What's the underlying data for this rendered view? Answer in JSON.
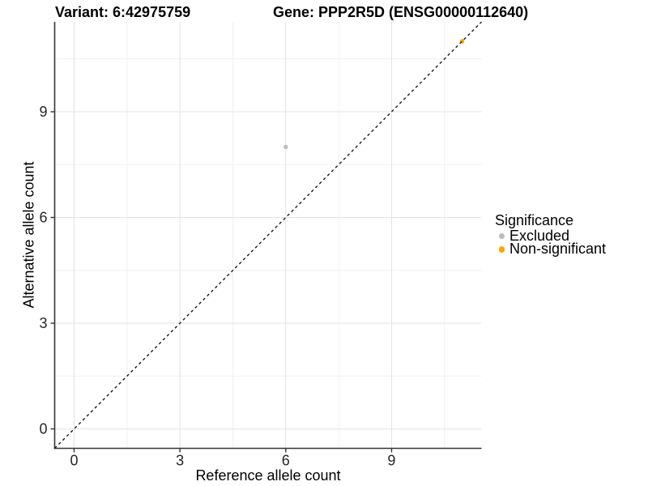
{
  "chart_data": {
    "type": "scatter",
    "title_left": "Variant: 6:42975759",
    "title_right": "Gene: PPP2R5D (ENSG00000112640)",
    "xlabel": "Reference allele count",
    "ylabel": "Alternative allele count",
    "xlim": [
      -0.55,
      11.55
    ],
    "ylim": [
      -0.55,
      11.55
    ],
    "x_major_ticks": [
      0,
      3,
      6,
      9
    ],
    "y_major_ticks": [
      0,
      3,
      6,
      9
    ],
    "x_minor_gridlines": [
      1.5,
      4.5,
      7.5,
      10.5
    ],
    "y_minor_gridlines": [
      1.5,
      4.5,
      7.5,
      10.5
    ],
    "grid": "major-and-minor",
    "identity_line": {
      "type": "y=x",
      "style": "dashed",
      "color": "#1a1a1a"
    },
    "series": [
      {
        "name": "Excluded",
        "color": "#bcbcbc",
        "points": [
          [
            6,
            8
          ]
        ]
      },
      {
        "name": "Non-significant",
        "color": "#ffa500",
        "points": [
          [
            11,
            11
          ]
        ]
      }
    ],
    "legend": {
      "title": "Significance",
      "position": "right",
      "entries": [
        {
          "label": "Excluded",
          "color": "#bcbcbc"
        },
        {
          "label": "Non-significant",
          "color": "#ffa500"
        }
      ]
    }
  },
  "style": {
    "background": "#ffffff",
    "grid_major_color": "#e2e2e2",
    "grid_minor_color": "#efefef",
    "axis_line_color": "#333333",
    "tick_label_color": "#262626",
    "point_radius": 2.7,
    "tick_label_size": 18
  }
}
